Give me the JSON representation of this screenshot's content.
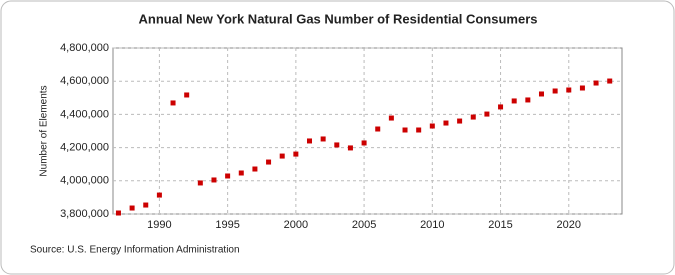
{
  "chart_data": {
    "type": "scatter",
    "title": "Annual New York Natural Gas Number of Residential Consumers",
    "y_label": "Number of Elements",
    "source": "Source: U.S. Energy Information Administration",
    "color": "#cc0000",
    "grid": true,
    "x": [
      1987,
      1988,
      1989,
      1990,
      1991,
      1992,
      1993,
      1994,
      1995,
      1996,
      1997,
      1998,
      1999,
      2000,
      2001,
      2002,
      2003,
      2004,
      2005,
      2006,
      2007,
      2008,
      2009,
      2010,
      2011,
      2012,
      2013,
      2014,
      2015,
      2016,
      2017,
      2018,
      2019,
      2020,
      2021,
      2022,
      2023
    ],
    "values": [
      3806000,
      3836000,
      3854000,
      3914000,
      4469000,
      4517000,
      3987000,
      4005000,
      4029000,
      4047000,
      4071000,
      4113000,
      4149000,
      4161000,
      4240000,
      4252000,
      4216000,
      4198000,
      4228000,
      4312000,
      4378000,
      4306000,
      4306000,
      4330000,
      4348000,
      4360000,
      4384000,
      4402000,
      4445000,
      4481000,
      4487000,
      4523000,
      4541000,
      4547000,
      4559000,
      4589000,
      4601000
    ],
    "xlim": [
      1986.6,
      2023.9
    ],
    "xticks": [
      1990,
      1995,
      2000,
      2005,
      2010,
      2015,
      2020
    ],
    "ylim": [
      3800000,
      4800000
    ],
    "yticks": [
      {
        "value": 3800000,
        "label": "3,800,000"
      },
      {
        "value": 4000000,
        "label": "4,000,000"
      },
      {
        "value": 4200000,
        "label": "4,200,000"
      },
      {
        "value": 4400000,
        "label": "4,400,000"
      },
      {
        "value": 4600000,
        "label": "4,600,000"
      },
      {
        "value": 4800000,
        "label": "4,800,000"
      }
    ]
  }
}
